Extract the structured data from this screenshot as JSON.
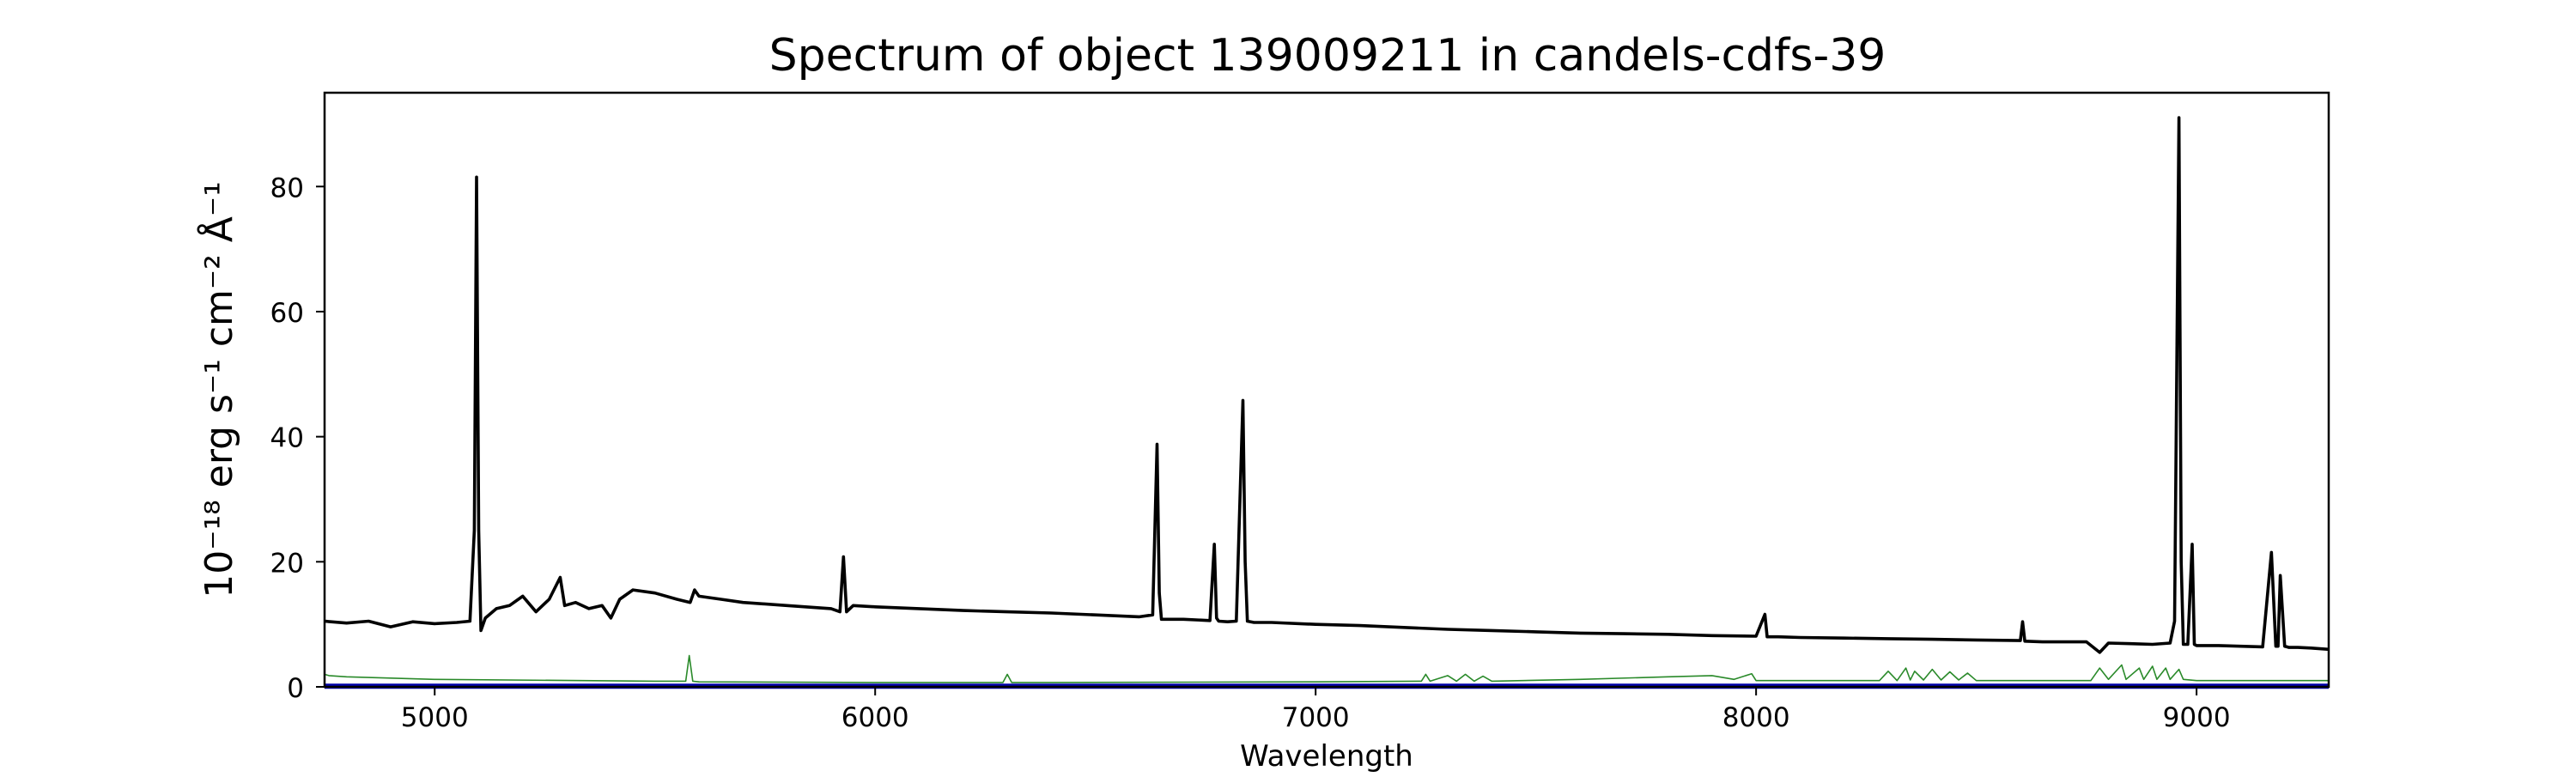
{
  "chart_data": {
    "type": "line",
    "title": "Spectrum of object 139009211 in candels-cdfs-39",
    "xlabel": "Wavelength",
    "ylabel": "10⁻¹⁸ erg s⁻¹ cm⁻² Å⁻¹",
    "xlim": [
      4750,
      9300
    ],
    "ylim": [
      0,
      95
    ],
    "xticks": [
      5000,
      6000,
      7000,
      8000,
      9000
    ],
    "yticks": [
      0,
      20,
      40,
      60,
      80
    ],
    "grid": false,
    "legend": "none",
    "series": [
      {
        "color": "#000000",
        "role": "flux",
        "x": [
          4750,
          4800,
          4850,
          4900,
          4950,
          5000,
          5050,
          5080,
          5090,
          5095,
          5100,
          5105,
          5115,
          5140,
          5170,
          5200,
          5230,
          5260,
          5285,
          5295,
          5320,
          5350,
          5380,
          5400,
          5420,
          5450,
          5500,
          5550,
          5580,
          5590,
          5600,
          5650,
          5700,
          5800,
          5900,
          5920,
          5928,
          5935,
          5950,
          6000,
          6100,
          6200,
          6300,
          6400,
          6500,
          6600,
          6630,
          6640,
          6645,
          6650,
          6660,
          6700,
          6760,
          6770,
          6775,
          6780,
          6800,
          6820,
          6835,
          6840,
          6845,
          6860,
          6900,
          7000,
          7100,
          7200,
          7300,
          7400,
          7500,
          7600,
          7700,
          7800,
          7900,
          8000,
          8020,
          8025,
          8030,
          8050,
          8100,
          8200,
          8300,
          8400,
          8500,
          8600,
          8605,
          8610,
          8650,
          8700,
          8750,
          8780,
          8800,
          8850,
          8900,
          8940,
          8950,
          8960,
          8965,
          8970,
          8980,
          8990,
          8995,
          9000,
          9020,
          9050,
          9100,
          9150,
          9170,
          9180,
          9185,
          9190,
          9200,
          9205,
          9210,
          9230,
          9260,
          9300
        ],
        "y": [
          10.5,
          10.2,
          10.5,
          9.6,
          10.4,
          10.1,
          10.3,
          10.5,
          25.0,
          81.5,
          25.0,
          9.0,
          11.0,
          12.5,
          13.0,
          14.5,
          12.0,
          14.0,
          17.5,
          13.0,
          13.5,
          12.5,
          13.0,
          11.0,
          14.0,
          15.5,
          15.0,
          14.0,
          13.5,
          15.5,
          14.5,
          14.0,
          13.5,
          13.0,
          12.5,
          12.0,
          20.8,
          12.0,
          13.0,
          12.8,
          12.5,
          12.2,
          12.0,
          11.8,
          11.5,
          11.2,
          11.5,
          38.8,
          15.0,
          10.8,
          10.8,
          10.8,
          10.6,
          22.8,
          11.0,
          10.5,
          10.4,
          10.5,
          45.8,
          20.0,
          10.5,
          10.3,
          10.3,
          10.0,
          9.8,
          9.5,
          9.2,
          9.0,
          8.8,
          8.6,
          8.5,
          8.4,
          8.2,
          8.1,
          11.6,
          8.0,
          8.0,
          8.0,
          7.9,
          7.8,
          7.7,
          7.6,
          7.5,
          7.4,
          10.4,
          7.3,
          7.2,
          7.2,
          7.2,
          5.5,
          7.0,
          6.9,
          6.8,
          7.0,
          10.5,
          91.0,
          20.0,
          6.8,
          6.8,
          22.8,
          6.8,
          6.6,
          6.6,
          6.6,
          6.5,
          6.4,
          21.5,
          6.5,
          6.5,
          17.8,
          6.5,
          6.4,
          6.3,
          6.3,
          6.2,
          6.0
        ]
      },
      {
        "color": "#2a8a2a",
        "role": "noise",
        "x": [
          4750,
          4760,
          4800,
          5000,
          5500,
          5570,
          5578,
          5586,
          5600,
          6000,
          6290,
          6300,
          6310,
          6400,
          7000,
          7240,
          7250,
          7260,
          7300,
          7320,
          7340,
          7360,
          7380,
          7400,
          7600,
          7800,
          7900,
          7950,
          7990,
          8000,
          8100,
          8280,
          8300,
          8320,
          8340,
          8350,
          8360,
          8380,
          8400,
          8420,
          8440,
          8460,
          8480,
          8500,
          8700,
          8760,
          8780,
          8800,
          8830,
          8840,
          8870,
          8880,
          8900,
          8910,
          8930,
          8940,
          8960,
          8970,
          9000,
          9100,
          9300
        ],
        "y": [
          2.0,
          1.8,
          1.6,
          1.2,
          0.9,
          0.9,
          5.0,
          0.9,
          0.8,
          0.7,
          0.7,
          2.0,
          0.7,
          0.7,
          0.8,
          0.9,
          2.0,
          0.9,
          1.8,
          0.9,
          2.0,
          0.9,
          1.7,
          0.9,
          1.2,
          1.6,
          1.8,
          1.2,
          2.1,
          1.0,
          1.0,
          1.0,
          2.5,
          1.0,
          3.0,
          1.1,
          2.5,
          1.1,
          2.8,
          1.1,
          2.4,
          1.1,
          2.2,
          1.0,
          1.0,
          1.0,
          3.0,
          1.2,
          3.5,
          1.2,
          3.0,
          1.2,
          3.3,
          1.2,
          3.0,
          1.2,
          2.8,
          1.2,
          1.0,
          1.0,
          1.0
        ]
      },
      {
        "color": "#0000aa",
        "role": "baseline",
        "x": [
          4750,
          9300
        ],
        "y": [
          0.1,
          0.1
        ]
      }
    ]
  }
}
